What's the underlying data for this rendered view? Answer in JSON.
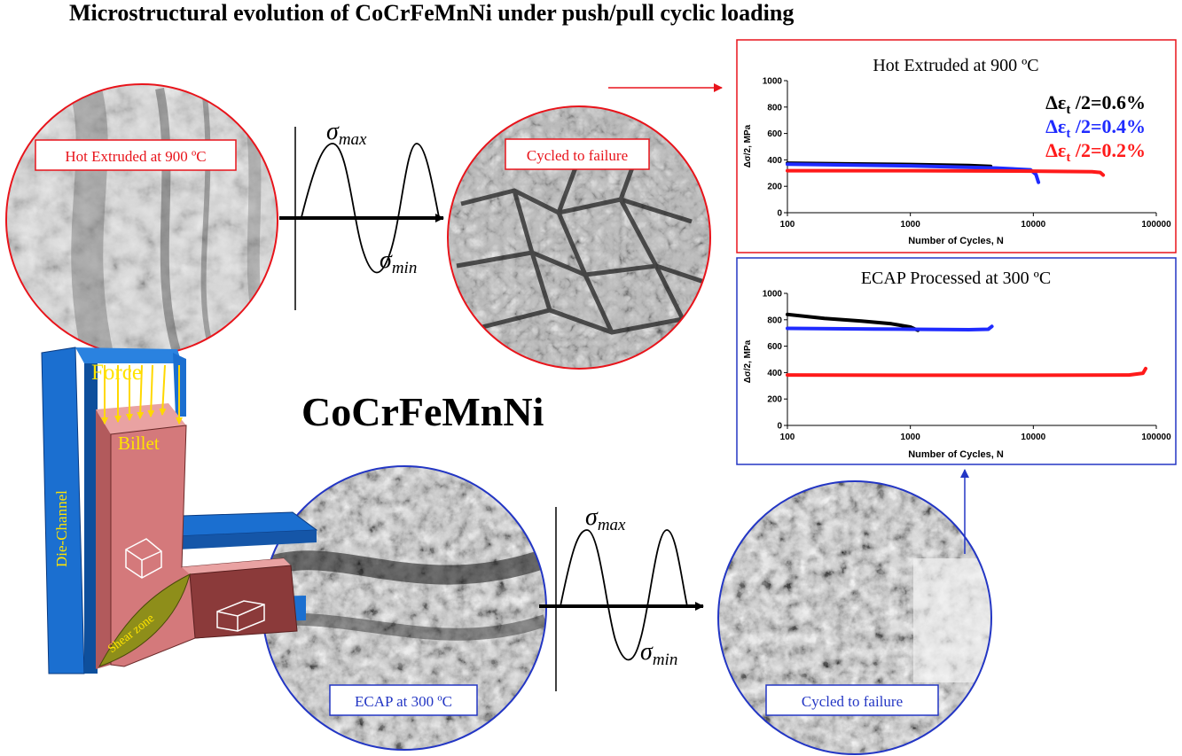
{
  "title": "Microstructural evolution of CoCrFeMnNi under push/pull cyclic loading",
  "alloy": "CoCrFeMnNi",
  "micrographs": {
    "hot_extruded": "Hot Extruded at 900 ºC",
    "cycled_top": "Cycled to failure",
    "ecap": "ECAP at 300 ºC",
    "cycled_bottom": "Cycled to failure"
  },
  "waveform": {
    "max": "σ",
    "max_sub": "max",
    "min": "σ",
    "min_sub": "min"
  },
  "die": {
    "force": "Force",
    "billet": "Billet",
    "channel": "Die-Channel",
    "shear": "Shear zone"
  },
  "colors": {
    "top_frame": "#e8141b",
    "bottom_frame": "#2336c4",
    "die_blue": "#1b6fd0",
    "billet": "#d4797b",
    "billet_side": "#8b3a3a",
    "shear": "#8e8e1a",
    "force_arrow": "#ffd800"
  },
  "chart_data": [
    {
      "type": "line",
      "title": "Hot Extruded at 900 ºC",
      "xlabel": "Number of Cycles, N",
      "ylabel": "Δσ/2, MPa",
      "xscale": "log",
      "xlim": [
        100,
        100000
      ],
      "ylim": [
        0,
        1000
      ],
      "xticks": [
        "100",
        "1000",
        "10000",
        "100000"
      ],
      "yticks": [
        "0",
        "200",
        "400",
        "600",
        "800",
        "1000"
      ],
      "legend_placement": "top-right",
      "series": [
        {
          "name": "Δεt /2=0.6%",
          "legend_prefix": "Δε",
          "legend_sub": "t",
          "legend_suffix": " /2=0.6%",
          "color": "#000000",
          "x": [
            100,
            300,
            1000,
            3000,
            4500
          ],
          "y": [
            375,
            370,
            365,
            358,
            350
          ]
        },
        {
          "name": "Δεt /2=0.4%",
          "legend_prefix": "Δε",
          "legend_sub": "t",
          "legend_suffix": " /2=0.4%",
          "color": "#1f2bff",
          "x": [
            100,
            1000,
            5000,
            9500,
            10500,
            11000
          ],
          "y": [
            368,
            355,
            338,
            325,
            290,
            230
          ]
        },
        {
          "name": "Δεt /2=0.2%",
          "legend_prefix": "Δε",
          "legend_sub": "t",
          "legend_suffix": " /2=0.2%",
          "color": "#ff1a1a",
          "x": [
            100,
            1000,
            10000,
            30000,
            35000,
            37000
          ],
          "y": [
            318,
            318,
            315,
            310,
            305,
            285
          ]
        }
      ]
    },
    {
      "type": "line",
      "title": "ECAP Processed at 300 ºC",
      "xlabel": "Number of Cycles, N",
      "ylabel": "Δσ/2, MPa",
      "xscale": "log",
      "xlim": [
        100,
        100000
      ],
      "ylim": [
        0,
        1000
      ],
      "xticks": [
        "100",
        "1000",
        "10000",
        "100000"
      ],
      "yticks": [
        "0",
        "200",
        "400",
        "600",
        "800",
        "1000"
      ],
      "series": [
        {
          "color": "#000000",
          "x": [
            100,
            200,
            400,
            700,
            1000,
            1150
          ],
          "y": [
            840,
            810,
            790,
            770,
            745,
            720
          ]
        },
        {
          "color": "#1f2bff",
          "x": [
            100,
            500,
            1000,
            3000,
            4300,
            4600
          ],
          "y": [
            735,
            730,
            728,
            725,
            728,
            750
          ]
        },
        {
          "color": "#ff1a1a",
          "x": [
            100,
            1000,
            10000,
            60000,
            78000,
            82000
          ],
          "y": [
            382,
            380,
            380,
            382,
            395,
            430
          ]
        }
      ]
    }
  ]
}
